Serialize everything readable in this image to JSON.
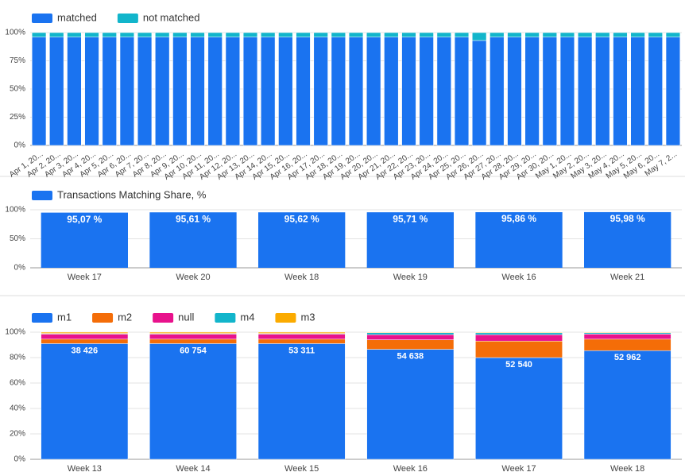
{
  "chart_data": [
    {
      "type": "bar",
      "stacked": true,
      "categories": [
        "Apr 1, 20...",
        "Apr 2, 20...",
        "Apr 3, 20...",
        "Apr 4, 20...",
        "Apr 5, 20...",
        "Apr 6, 20...",
        "Apr 7, 20...",
        "Apr 8, 20...",
        "Apr 9, 20...",
        "Apr 10, 20...",
        "Apr 11, 20...",
        "Apr 12, 20...",
        "Apr 13, 20...",
        "Apr 14, 20...",
        "Apr 15, 20...",
        "Apr 16, 20...",
        "Apr 17, 20...",
        "Apr 18, 20...",
        "Apr 19, 20...",
        "Apr 20, 20...",
        "Apr 21, 20...",
        "Apr 22, 20...",
        "Apr 23, 20...",
        "Apr 24, 20...",
        "Apr 25, 20...",
        "Apr 26, 20...",
        "Apr 27, 20...",
        "Apr 28, 20...",
        "Apr 29, 20...",
        "Apr 30, 20...",
        "May 1, 20...",
        "May 2, 20...",
        "May 3, 20...",
        "May 4, 20...",
        "May 5, 20...",
        "May 6, 20...",
        "May 7, 2..."
      ],
      "series": [
        {
          "name": "matched",
          "color": "#1a73f0",
          "values": [
            96,
            96,
            96,
            96,
            96,
            96,
            96,
            96,
            96,
            96,
            96,
            96,
            96,
            96,
            96,
            96,
            96,
            96,
            96,
            96,
            96,
            96,
            96,
            96,
            96,
            93,
            96,
            96,
            96,
            96,
            96,
            96,
            96,
            96,
            96,
            96,
            96
          ]
        },
        {
          "name": "not matched",
          "color": "#12b5cb",
          "values": [
            4,
            4,
            4,
            4,
            4,
            4,
            4,
            4,
            4,
            4,
            4,
            4,
            4,
            4,
            4,
            4,
            4,
            4,
            4,
            4,
            4,
            4,
            4,
            4,
            4,
            7,
            4,
            4,
            4,
            4,
            4,
            4,
            4,
            4,
            4,
            4,
            4
          ]
        }
      ],
      "ylim": [
        0,
        100
      ],
      "yticks": [
        {
          "value": 0,
          "label": "0%"
        },
        {
          "value": 25,
          "label": "25%"
        },
        {
          "value": 50,
          "label": "50%"
        },
        {
          "value": 75,
          "label": "75%"
        },
        {
          "value": 100,
          "label": "100%"
        }
      ],
      "grid": true
    },
    {
      "type": "bar",
      "categories": [
        "Week 17",
        "Week 20",
        "Week 18",
        "Week 19",
        "Week 16",
        "Week 21"
      ],
      "series": [
        {
          "name": "Transactions Matching Share, %",
          "color": "#1a73f0",
          "values": [
            95.07,
            95.61,
            95.62,
            95.71,
            95.86,
            95.98
          ],
          "value_labels": [
            "95,07 %",
            "95,61 %",
            "95,62 %",
            "95,71 %",
            "95,86 %",
            "95,98 %"
          ]
        }
      ],
      "ylim": [
        0,
        100
      ],
      "yticks": [
        {
          "value": 0,
          "label": "0%"
        },
        {
          "value": 50,
          "label": "50%"
        },
        {
          "value": 100,
          "label": "100%"
        }
      ],
      "grid": true
    },
    {
      "type": "bar",
      "stacked": "percent",
      "categories": [
        "Week 13",
        "Week 14",
        "Week 15",
        "Week 16",
        "Week 17",
        "Week 18"
      ],
      "series": [
        {
          "name": "m1",
          "color": "#1a73f0",
          "values": [
            38426,
            60754,
            53311,
            54638,
            52540,
            52962
          ],
          "value_labels": [
            "38 426",
            "60 754",
            "53 311",
            "54 638",
            "52 540",
            "52 962"
          ]
        },
        {
          "name": "m2",
          "color": "#f46d08",
          "values": [
            1480,
            2340,
            2050,
            4740,
            8540,
            5575
          ]
        },
        {
          "name": "null",
          "color": "#e8128c",
          "values": [
            1690,
            2670,
            2340,
            2530,
            3280,
            2480
          ]
        },
        {
          "name": "m4",
          "color": "#12b5cb",
          "values": [
            210,
            330,
            290,
            950,
            985,
            620
          ]
        },
        {
          "name": "m3",
          "color": "#fbab00",
          "values": [
            420,
            670,
            590,
            300,
            330,
            310
          ]
        }
      ],
      "ylim": [
        0,
        100
      ],
      "yticks": [
        {
          "value": 0,
          "label": "0%"
        },
        {
          "value": 20,
          "label": "20%"
        },
        {
          "value": 40,
          "label": "40%"
        },
        {
          "value": 60,
          "label": "60%"
        },
        {
          "value": 80,
          "label": "80%"
        },
        {
          "value": 100,
          "label": "100%"
        }
      ],
      "grid": true
    }
  ]
}
